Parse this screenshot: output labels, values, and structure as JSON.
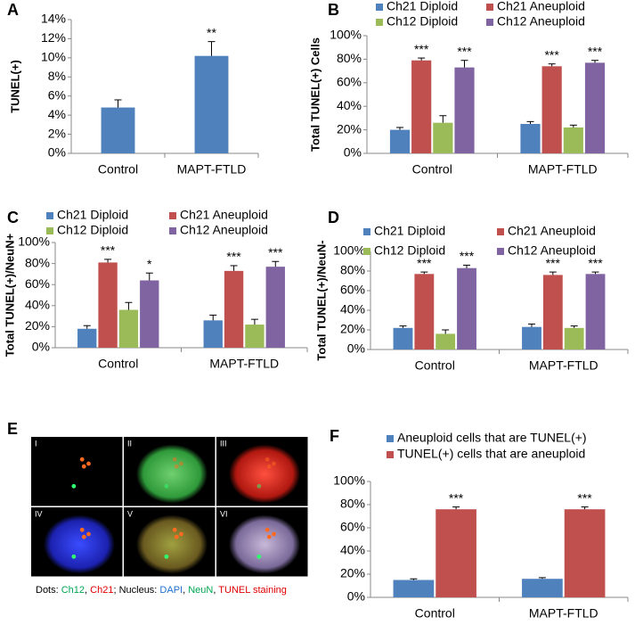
{
  "chart_data": [
    {
      "type": "bar",
      "panel": "A",
      "ylabel": "TUNEL(+)",
      "categories": [
        "Control",
        "MAPT-FTLD"
      ],
      "values": [
        4.8,
        10.2
      ],
      "errors": [
        0.8,
        1.5
      ],
      "stars": [
        null,
        "**"
      ],
      "color": "#4f81bd",
      "ylim": [
        0,
        14
      ],
      "yticks": [
        {
          "value": 0,
          "label": "0%"
        },
        {
          "value": 2,
          "label": "2%"
        },
        {
          "value": 4,
          "label": "4%"
        },
        {
          "value": 6,
          "label": "6%"
        },
        {
          "value": 8,
          "label": "8%"
        },
        {
          "value": 10,
          "label": "10%"
        },
        {
          "value": 12,
          "label": "12%"
        },
        {
          "value": 14,
          "label": "14%"
        }
      ]
    },
    {
      "type": "bar",
      "panel": "B",
      "ylabel": "Total TUNEL(+) Cells",
      "categories": [
        "Control",
        "MAPT-FTLD"
      ],
      "legend": "top",
      "series": [
        {
          "name": "Ch21 Diploid",
          "color": "#4f81bd",
          "values": [
            20,
            25
          ],
          "errors": [
            2,
            2
          ]
        },
        {
          "name": "Ch21 Aneuploid",
          "color": "#c0504d",
          "values": [
            79,
            74
          ],
          "errors": [
            2,
            2
          ],
          "stars": [
            "***",
            "***"
          ]
        },
        {
          "name": "Ch12 Diploid",
          "color": "#9bbb59",
          "values": [
            26,
            22
          ],
          "errors": [
            6,
            2
          ]
        },
        {
          "name": "Ch12 Aneuploid",
          "color": "#8064a2",
          "values": [
            73,
            77
          ],
          "errors": [
            6,
            2
          ],
          "stars": [
            "***",
            "***"
          ]
        }
      ],
      "ylim": [
        0,
        100
      ],
      "yticks": [
        {
          "value": 0,
          "label": "0%"
        },
        {
          "value": 20,
          "label": "20%"
        },
        {
          "value": 40,
          "label": "40%"
        },
        {
          "value": 60,
          "label": "60%"
        },
        {
          "value": 80,
          "label": "80%"
        },
        {
          "value": 100,
          "label": "100%"
        }
      ]
    },
    {
      "type": "bar",
      "panel": "C",
      "ylabel": "Total TUNEL(+)/NeuN+",
      "categories": [
        "Control",
        "MAPT-FTLD"
      ],
      "legend": "top",
      "series": [
        {
          "name": "Ch21 Diploid",
          "color": "#4f81bd",
          "values": [
            18,
            26
          ],
          "errors": [
            3,
            5
          ]
        },
        {
          "name": "Ch21 Aneuploid",
          "color": "#c0504d",
          "values": [
            81,
            73
          ],
          "errors": [
            3,
            5
          ],
          "stars": [
            "***",
            "***"
          ]
        },
        {
          "name": "Ch12 Diploid",
          "color": "#9bbb59",
          "values": [
            36,
            22
          ],
          "errors": [
            7,
            5
          ]
        },
        {
          "name": "Ch12 Aneuploid",
          "color": "#8064a2",
          "values": [
            64,
            77
          ],
          "errors": [
            7,
            5
          ],
          "stars": [
            "*",
            "***"
          ]
        }
      ],
      "ylim": [
        0,
        100
      ],
      "yticks": [
        {
          "value": 0,
          "label": "0%"
        },
        {
          "value": 20,
          "label": "20%"
        },
        {
          "value": 40,
          "label": "40%"
        },
        {
          "value": 60,
          "label": "60%"
        },
        {
          "value": 80,
          "label": "80%"
        },
        {
          "value": 100,
          "label": "100%"
        }
      ]
    },
    {
      "type": "bar",
      "panel": "D",
      "ylabel": "Total TUNEL(+)/NeuN-",
      "categories": [
        "Control",
        "MAPT-FTLD"
      ],
      "legend": "top",
      "series": [
        {
          "name": "Ch21 Diploid",
          "color": "#4f81bd",
          "values": [
            22,
            23
          ],
          "errors": [
            2,
            3
          ]
        },
        {
          "name": "Ch21 Aneuploid",
          "color": "#c0504d",
          "values": [
            77,
            76
          ],
          "errors": [
            2,
            3
          ],
          "stars": [
            "***",
            "***"
          ]
        },
        {
          "name": "Ch12 Diploid",
          "color": "#9bbb59",
          "values": [
            16,
            22
          ],
          "errors": [
            4,
            2
          ]
        },
        {
          "name": "Ch12 Aneuploid",
          "color": "#8064a2",
          "values": [
            83,
            77
          ],
          "errors": [
            3,
            2
          ],
          "stars": [
            "***",
            "***"
          ]
        }
      ],
      "ylim": [
        0,
        100
      ],
      "yticks": [
        {
          "value": 0,
          "label": "0%"
        },
        {
          "value": 20,
          "label": "20%"
        },
        {
          "value": 40,
          "label": "40%"
        },
        {
          "value": 60,
          "label": "60%"
        },
        {
          "value": 80,
          "label": "80%"
        },
        {
          "value": 100,
          "label": "100%"
        }
      ]
    },
    {
      "type": "bar",
      "panel": "F",
      "categories": [
        "Control",
        "MAPT-FTLD"
      ],
      "legend": "top",
      "series": [
        {
          "name": "Aneuploid cells that are TUNEL(+)",
          "color": "#4f81bd",
          "values": [
            15,
            16
          ],
          "errors": [
            1,
            1
          ]
        },
        {
          "name": "TUNEL(+) cells that are aneuploid",
          "color": "#c0504d",
          "values": [
            76,
            76
          ],
          "errors": [
            2,
            2
          ],
          "stars": [
            "***",
            "***"
          ]
        }
      ],
      "ylim": [
        0,
        100
      ],
      "yticks": [
        {
          "value": 0,
          "label": "0%"
        },
        {
          "value": 20,
          "label": "20%"
        },
        {
          "value": 40,
          "label": "40%"
        },
        {
          "value": 60,
          "label": "60%"
        },
        {
          "value": 80,
          "label": "80%"
        },
        {
          "value": 100,
          "label": "100%"
        }
      ]
    }
  ],
  "image_panel": {
    "panel": "E",
    "labels": [
      "I",
      "II",
      "III",
      "IV",
      "V",
      "VI"
    ],
    "caption": [
      {
        "text": "Dots: ",
        "color": "#000000"
      },
      {
        "text": "Ch12",
        "color": "#00a651"
      },
      {
        "text": ", ",
        "color": "#000000"
      },
      {
        "text": "Ch21",
        "color": "#e00000"
      },
      {
        "text": "; Nucleus: ",
        "color": "#000000"
      },
      {
        "text": "DAPI",
        "color": "#1f6fd0"
      },
      {
        "text": ", ",
        "color": "#000000"
      },
      {
        "text": "NeuN",
        "color": "#00a651"
      },
      {
        "text": ", ",
        "color": "#000000"
      },
      {
        "text": "TUNEL staining",
        "color": "#e00000"
      }
    ]
  }
}
